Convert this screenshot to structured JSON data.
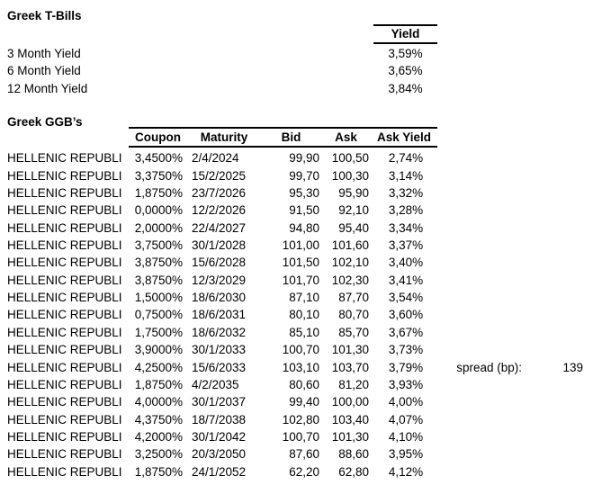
{
  "colors": {
    "background": "#ffffff",
    "text": "#000000",
    "border": "#000000"
  },
  "t_bills": {
    "title": "Greek T-Bills",
    "yield_header": "Yield",
    "rows": [
      {
        "label": "3 Month Yield",
        "value": "3,59%"
      },
      {
        "label": "6 Month Yield",
        "value": "3,65%"
      },
      {
        "label": "12 Month Yield",
        "value": "3,84%"
      }
    ]
  },
  "ggbs": {
    "title": "Greek GGB’s",
    "headers": [
      "Coupon",
      "Maturity",
      "Bid",
      "Ask",
      "Ask Yield"
    ],
    "rows": [
      {
        "name": "HELLENIC REPUBLI",
        "coupon": "3,4500%",
        "maturity": "2/4/2024",
        "bid": "99,90",
        "ask": "100,50",
        "ask_yield": "2,74%"
      },
      {
        "name": "HELLENIC REPUBLI",
        "coupon": "3,3750%",
        "maturity": "15/2/2025",
        "bid": "99,70",
        "ask": "100,30",
        "ask_yield": "3,14%"
      },
      {
        "name": "HELLENIC REPUBLI",
        "coupon": "1,8750%",
        "maturity": "23/7/2026",
        "bid": "95,30",
        "ask": "95,90",
        "ask_yield": "3,32%"
      },
      {
        "name": "HELLENIC REPUBLI",
        "coupon": "0,0000%",
        "maturity": "12/2/2026",
        "bid": "91,50",
        "ask": "92,10",
        "ask_yield": "3,28%"
      },
      {
        "name": "HELLENIC REPUBLI",
        "coupon": "2,0000%",
        "maturity": "22/4/2027",
        "bid": "94,80",
        "ask": "95,40",
        "ask_yield": "3,34%"
      },
      {
        "name": "HELLENIC REPUBLI",
        "coupon": "3,7500%",
        "maturity": "30/1/2028",
        "bid": "101,00",
        "ask": "101,60",
        "ask_yield": "3,37%"
      },
      {
        "name": "HELLENIC REPUBLI",
        "coupon": "3,8750%",
        "maturity": "15/6/2028",
        "bid": "101,50",
        "ask": "102,10",
        "ask_yield": "3,40%"
      },
      {
        "name": "HELLENIC REPUBLI",
        "coupon": "3,8750%",
        "maturity": "12/3/2029",
        "bid": "101,70",
        "ask": "102,30",
        "ask_yield": "3,41%"
      },
      {
        "name": "HELLENIC REPUBLI",
        "coupon": "1,5000%",
        "maturity": "18/6/2030",
        "bid": "87,10",
        "ask": "87,70",
        "ask_yield": "3,54%"
      },
      {
        "name": "HELLENIC REPUBLI",
        "coupon": "0,7500%",
        "maturity": "18/6/2031",
        "bid": "80,10",
        "ask": "80,70",
        "ask_yield": "3,60%"
      },
      {
        "name": "HELLENIC REPUBLI",
        "coupon": "1,7500%",
        "maturity": "18/6/2032",
        "bid": "85,10",
        "ask": "85,70",
        "ask_yield": "3,67%"
      },
      {
        "name": "HELLENIC REPUBLI",
        "coupon": "3,9000%",
        "maturity": "30/1/2033",
        "bid": "100,70",
        "ask": "101,30",
        "ask_yield": "3,73%"
      },
      {
        "name": "HELLENIC REPUBLI",
        "coupon": "4,2500%",
        "maturity": "15/6/2033",
        "bid": "103,10",
        "ask": "103,70",
        "ask_yield": "3,79%"
      },
      {
        "name": "HELLENIC REPUBLI",
        "coupon": "1,8750%",
        "maturity": "4/2/2035",
        "bid": "80,60",
        "ask": "81,20",
        "ask_yield": "3,93%"
      },
      {
        "name": "HELLENIC REPUBLI",
        "coupon": "4,0000%",
        "maturity": "30/1/2037",
        "bid": "99,40",
        "ask": "100,00",
        "ask_yield": "4,00%"
      },
      {
        "name": "HELLENIC REPUBLI",
        "coupon": "4,3750%",
        "maturity": "18/7/2038",
        "bid": "102,80",
        "ask": "103,40",
        "ask_yield": "4,07%"
      },
      {
        "name": "HELLENIC REPUBLI",
        "coupon": "4,2000%",
        "maturity": "30/1/2042",
        "bid": "100,70",
        "ask": "101,30",
        "ask_yield": "4,10%"
      },
      {
        "name": "HELLENIC REPUBLI",
        "coupon": "3,2500%",
        "maturity": "20/3/2050",
        "bid": "87,60",
        "ask": "88,60",
        "ask_yield": "3,95%"
      },
      {
        "name": "HELLENIC REPUBLI",
        "coupon": "1,8750%",
        "maturity": "24/1/2052",
        "bid": "62,20",
        "ask": "62,80",
        "ask_yield": "4,12%"
      }
    ],
    "spread_row_index": 12
  },
  "spread": {
    "label": "spread (bp):",
    "value": "139"
  }
}
